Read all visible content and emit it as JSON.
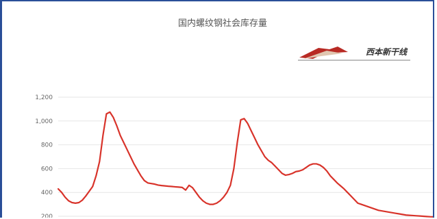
{
  "chart_data": {
    "type": "line",
    "title": "国内螺纹钢社会库存量",
    "xlabel": "",
    "ylabel": "",
    "ylim": [
      200,
      1200
    ],
    "yticks": [
      1200,
      1000,
      800,
      600,
      400,
      200
    ],
    "ytick_labels": [
      "1,200",
      "1,000",
      "800",
      "600",
      "400",
      "200"
    ],
    "grid": true,
    "legend": "none",
    "series": [
      {
        "color": "#d8332a",
        "x": [
          0,
          1,
          2,
          3,
          4,
          5,
          6,
          7,
          8,
          9,
          10,
          11,
          12,
          13,
          14,
          15,
          16,
          17,
          18,
          19,
          20,
          21,
          22,
          23,
          24,
          25,
          26,
          27,
          28,
          29,
          30,
          31,
          32,
          33,
          34,
          35,
          36,
          37,
          38,
          39,
          40,
          41,
          42,
          43,
          44,
          45,
          46,
          47,
          48,
          49,
          50,
          51,
          52,
          53,
          54,
          55,
          56,
          57,
          58,
          59,
          60,
          61,
          62,
          63,
          64,
          65,
          66,
          67,
          68,
          69,
          70,
          71,
          72,
          73,
          74,
          75,
          76,
          77,
          78,
          79,
          80,
          81,
          82,
          83,
          84,
          85,
          86,
          87,
          88,
          89,
          90,
          91,
          92,
          93,
          94,
          95,
          96,
          97,
          98,
          99,
          100,
          101,
          102,
          103,
          104,
          105,
          106,
          107,
          108,
          109
        ],
        "values": [
          430,
          400,
          360,
          330,
          315,
          310,
          315,
          335,
          370,
          410,
          450,
          540,
          660,
          880,
          1060,
          1075,
          1030,
          960,
          880,
          820,
          760,
          700,
          640,
          590,
          540,
          500,
          480,
          475,
          470,
          462,
          458,
          455,
          452,
          450,
          447,
          445,
          442,
          420,
          460,
          440,
          400,
          360,
          330,
          310,
          300,
          300,
          310,
          330,
          360,
          400,
          460,
          600,
          820,
          1010,
          1020,
          980,
          920,
          860,
          800,
          750,
          700,
          670,
          650,
          620,
          590,
          560,
          545,
          550,
          560,
          575,
          580,
          590,
          610,
          630,
          640,
          640,
          630,
          610,
          580,
          540,
          510,
          480,
          455,
          430,
          400,
          370,
          340,
          310,
          300,
          290,
          280,
          270,
          260,
          250,
          245,
          240,
          235,
          230,
          225,
          220,
          215,
          210,
          208,
          206,
          204,
          202,
          200,
          198,
          196,
          195
        ]
      }
    ]
  },
  "logo": {
    "text": "西本新干线"
  }
}
